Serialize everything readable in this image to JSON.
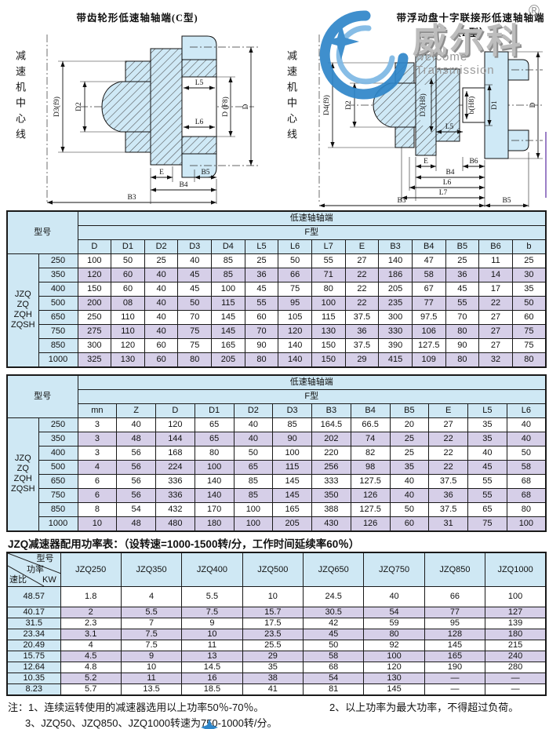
{
  "watermark": {
    "brand": "威尔科",
    "reg": "®",
    "subtitle": "welcome Transmission"
  },
  "diagrams": {
    "center_axis_label": "减速机中心线",
    "left": {
      "title": "带齿轮形低速轴轴端(C型)",
      "dims": {
        "d3": "D3(f9)",
        "d2": "D2",
        "l5": "L5",
        "l6": "L6",
        "d_f8": "D (F8)",
        "d": "D",
        "e": "E",
        "b5": "B5",
        "b4": "B4",
        "b3": "B3"
      }
    },
    "right": {
      "title": "带浮动盘十字联接形低速轴轴端（F型）",
      "dims": {
        "d4": "D4(f9)",
        "d2": "D2",
        "d3": "D3(H8)",
        "l5": "L5",
        "b": "b(H8)",
        "d1": "D1",
        "d": "D",
        "e": "E",
        "b6": "B6",
        "b4": "B4",
        "l6": "L6",
        "l7": "L7",
        "b3": "B3",
        "b5": "B5"
      }
    }
  },
  "table1": {
    "corner": "型号",
    "group": "低速轴轴端",
    "subgroup": "F型",
    "series": "JZQ\nZQ\nZQH\nZQSH",
    "columns": [
      "D",
      "D1",
      "D2",
      "D3",
      "D4",
      "L5",
      "L6",
      "L7",
      "E",
      "B3",
      "B4",
      "B5",
      "B6",
      "b"
    ],
    "rows": [
      [
        "250",
        "100",
        "50",
        "25",
        "40",
        "85",
        "25",
        "50",
        "55",
        "27",
        "140",
        "47",
        "25",
        "11",
        "25"
      ],
      [
        "350",
        "120",
        "60",
        "40",
        "45",
        "85",
        "36",
        "66",
        "71",
        "22",
        "186",
        "58",
        "36",
        "14",
        "30"
      ],
      [
        "400",
        "150",
        "60",
        "40",
        "45",
        "100",
        "45",
        "75",
        "80",
        "22",
        "205",
        "67",
        "45",
        "17",
        "35"
      ],
      [
        "500",
        "200",
        "08",
        "40",
        "50",
        "115",
        "55",
        "95",
        "100",
        "22",
        "235",
        "77",
        "55",
        "22",
        "50"
      ],
      [
        "650",
        "250",
        "110",
        "40",
        "70",
        "145",
        "60",
        "105",
        "115",
        "37.5",
        "300",
        "97.5",
        "70",
        "27",
        "60"
      ],
      [
        "750",
        "275",
        "110",
        "40",
        "75",
        "145",
        "70",
        "120",
        "130",
        "36",
        "330",
        "106",
        "80",
        "27",
        "75"
      ],
      [
        "850",
        "300",
        "120",
        "60",
        "75",
        "165",
        "90",
        "140",
        "150",
        "37.5",
        "390",
        "127.5",
        "90",
        "27",
        "75"
      ],
      [
        "1000",
        "325",
        "130",
        "60",
        "80",
        "205",
        "80",
        "140",
        "150",
        "29",
        "415",
        "109",
        "80",
        "32",
        "80"
      ]
    ]
  },
  "table2": {
    "corner": "型号",
    "group": "低速轴轴端",
    "subgroup": "F型",
    "series": "JZQ\nZQ\nZQH\nZQSH",
    "columns": [
      "mn",
      "Z",
      "D",
      "D1",
      "D2",
      "D3",
      "B3",
      "B4",
      "B5",
      "E",
      "L5",
      "L6"
    ],
    "rows": [
      [
        "250",
        "3",
        "40",
        "120",
        "65",
        "40",
        "85",
        "164.5",
        "66.5",
        "20",
        "27",
        "35",
        "40"
      ],
      [
        "350",
        "3",
        "48",
        "144",
        "65",
        "40",
        "90",
        "202",
        "74",
        "25",
        "22",
        "35",
        "40"
      ],
      [
        "400",
        "3",
        "56",
        "168",
        "80",
        "50",
        "100",
        "220",
        "82",
        "25",
        "22",
        "40",
        "50"
      ],
      [
        "500",
        "4",
        "56",
        "224",
        "100",
        "65",
        "115",
        "256",
        "98",
        "35",
        "22",
        "45",
        "58"
      ],
      [
        "650",
        "6",
        "56",
        "336",
        "140",
        "85",
        "145",
        "333",
        "127.5",
        "40",
        "37.5",
        "55",
        "68"
      ],
      [
        "750",
        "6",
        "56",
        "336",
        "140",
        "85",
        "145",
        "350",
        "126",
        "40",
        "36",
        "55",
        "68"
      ],
      [
        "850",
        "8",
        "54",
        "432",
        "170",
        "100",
        "165",
        "388",
        "127.5",
        "50",
        "37.5",
        "65",
        "80"
      ],
      [
        "1000",
        "10",
        "48",
        "480",
        "180",
        "100",
        "205",
        "430",
        "126",
        "60",
        "31",
        "75",
        "100"
      ]
    ]
  },
  "table3": {
    "title": "JZQ减速器配用功率表：（设转速=1000-1500转/分，工作时间延续率60％）",
    "corner_top": "型号",
    "corner_mid": "功率",
    "corner_bottom": "速比",
    "corner_unit": "KW",
    "columns": [
      "JZQ250",
      "JZQ350",
      "JZQ400",
      "JZQ500",
      "JZQ650",
      "JZQ750",
      "JZQ850",
      "JZQ1000"
    ],
    "rows": [
      [
        "48.57",
        "1.8",
        "4",
        "5.5",
        "10",
        "24.5",
        "40",
        "66",
        "100"
      ],
      [
        "40.17",
        "2",
        "5.5",
        "7.5",
        "15.7",
        "30.5",
        "54",
        "77",
        "127"
      ],
      [
        "31.5",
        "2.3",
        "7",
        "9",
        "17.5",
        "42",
        "59",
        "95",
        "139"
      ],
      [
        "23.34",
        "3.1",
        "7.5",
        "10",
        "23.5",
        "45",
        "80",
        "128",
        "180"
      ],
      [
        "20.49",
        "4",
        "7.5",
        "11",
        "25.5",
        "50",
        "92",
        "145",
        "215"
      ],
      [
        "15.75",
        "4.5",
        "9",
        "13",
        "29",
        "58",
        "100",
        "165",
        "240"
      ],
      [
        "12.64",
        "4.8",
        "10",
        "14.5",
        "35",
        "68",
        "120",
        "190",
        "280"
      ],
      [
        "10.35",
        "5.2",
        "11",
        "16",
        "38",
        "54",
        "130",
        "—",
        "—"
      ],
      [
        "8.23",
        "5.7",
        "13.5",
        "18.5",
        "41",
        "81",
        "145",
        "—",
        "—"
      ]
    ]
  },
  "notes": {
    "prefix": "注：",
    "n1": "1、连续运转使用的减速器选用以上功率50％-70％。",
    "n2": "2、以上功率为最大功率，不得超过负荷。",
    "n3": "3、JZQ50、JZQ850、JZQ1000转速为750-1000转/分。"
  },
  "colors": {
    "header_blue": "#cfe8f4",
    "row_lavender": "#d6cfe8",
    "drawing_fill": "#cfe9f6",
    "accent_purple": "#9b7fc7",
    "logo_blue": "#2f86c9",
    "logo_gray": "#9a9a9a"
  }
}
